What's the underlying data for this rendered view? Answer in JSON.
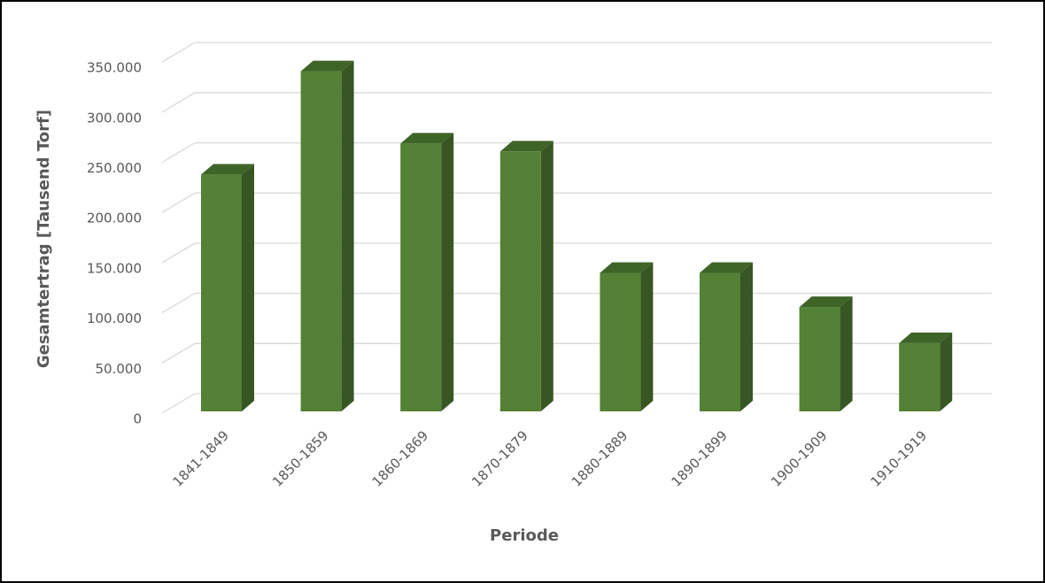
{
  "chart_data": {
    "type": "bar",
    "x_label": "Periode",
    "y_label": "Gesamtertrag [Tausend Torf]",
    "categories": [
      "1841-1849",
      "1850-1859",
      "1860-1869",
      "1870-1879",
      "1880-1889",
      "1890-1899",
      "1900-1909",
      "1910-1919"
    ],
    "values": [
      236000,
      339000,
      267000,
      259000,
      138000,
      138000,
      104000,
      68000
    ],
    "color": "#538135",
    "ylim": [
      0,
      350000
    ],
    "yticks": [
      0,
      {
        "value": 50000,
        "label": "50.000"
      },
      {
        "value": 100000,
        "label": "100.000"
      },
      {
        "value": 150000,
        "label": "150.000"
      },
      {
        "value": 200000,
        "label": "200.000"
      },
      {
        "value": 250000,
        "label": "250.000"
      },
      {
        "value": 300000,
        "label": "300.000"
      },
      {
        "value": 350000,
        "label": "350.000"
      }
    ],
    "grid": true
  }
}
